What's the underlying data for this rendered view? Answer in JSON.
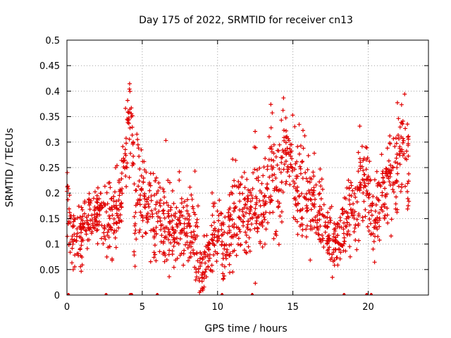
{
  "chart_data": {
    "type": "scatter",
    "title": "Day 175 of 2022, SRMTID for receiver cn13",
    "xlabel": "GPS time / hours",
    "ylabel": "SRMTID / TECUs",
    "xlim": [
      0,
      24
    ],
    "ylim": [
      0,
      0.5
    ],
    "x_ticks": [
      0,
      5,
      10,
      15,
      20
    ],
    "x_tick_labels": [
      "0",
      "5",
      "10",
      "15",
      "20"
    ],
    "y_ticks": [
      0,
      0.05,
      0.1,
      0.15,
      0.2,
      0.25,
      0.3,
      0.35,
      0.4,
      0.45,
      0.5
    ],
    "y_tick_labels": [
      "0",
      "0.05",
      "0.1",
      "0.15",
      "0.2",
      "0.25",
      "0.3",
      "0.35",
      "0.4",
      "0.45",
      "0.5"
    ],
    "grid": true,
    "marker": "+",
    "series_color": "#e00000",
    "density": 20,
    "trend": [
      [
        0.0,
        0.19,
        0.04
      ],
      [
        0.3,
        0.1,
        0.03
      ],
      [
        1.0,
        0.12,
        0.03
      ],
      [
        1.5,
        0.15,
        0.03
      ],
      [
        2.0,
        0.16,
        0.03
      ],
      [
        2.5,
        0.15,
        0.03
      ],
      [
        3.0,
        0.14,
        0.04
      ],
      [
        3.5,
        0.16,
        0.04
      ],
      [
        3.9,
        0.25,
        0.05
      ],
      [
        4.1,
        0.34,
        0.05
      ],
      [
        4.3,
        0.4,
        0.05
      ],
      [
        4.5,
        0.12,
        0.04
      ],
      [
        4.7,
        0.26,
        0.05
      ],
      [
        5.0,
        0.2,
        0.04
      ],
      [
        5.5,
        0.18,
        0.04
      ],
      [
        6.0,
        0.16,
        0.04
      ],
      [
        6.5,
        0.15,
        0.05
      ],
      [
        7.0,
        0.12,
        0.04
      ],
      [
        7.5,
        0.13,
        0.04
      ],
      [
        8.0,
        0.14,
        0.05
      ],
      [
        8.5,
        0.11,
        0.04
      ],
      [
        8.8,
        0.06,
        0.03
      ],
      [
        9.0,
        0.04,
        0.02
      ],
      [
        9.3,
        0.07,
        0.03
      ],
      [
        9.7,
        0.12,
        0.04
      ],
      [
        10.0,
        0.13,
        0.04
      ],
      [
        10.5,
        0.09,
        0.03
      ],
      [
        11.0,
        0.16,
        0.05
      ],
      [
        11.5,
        0.17,
        0.04
      ],
      [
        12.0,
        0.14,
        0.04
      ],
      [
        12.5,
        0.19,
        0.05
      ],
      [
        13.0,
        0.15,
        0.04
      ],
      [
        13.5,
        0.25,
        0.06
      ],
      [
        14.0,
        0.2,
        0.06
      ],
      [
        14.5,
        0.3,
        0.05
      ],
      [
        15.0,
        0.24,
        0.05
      ],
      [
        15.5,
        0.2,
        0.06
      ],
      [
        16.0,
        0.19,
        0.05
      ],
      [
        16.5,
        0.17,
        0.04
      ],
      [
        17.0,
        0.15,
        0.04
      ],
      [
        17.5,
        0.12,
        0.03
      ],
      [
        18.0,
        0.09,
        0.03
      ],
      [
        18.5,
        0.14,
        0.03
      ],
      [
        19.0,
        0.17,
        0.04
      ],
      [
        19.5,
        0.21,
        0.05
      ],
      [
        19.9,
        0.2,
        0.04
      ],
      [
        20.4,
        0.15,
        0.04
      ],
      [
        20.8,
        0.18,
        0.04
      ],
      [
        21.2,
        0.22,
        0.04
      ],
      [
        21.6,
        0.24,
        0.05
      ],
      [
        22.0,
        0.27,
        0.05
      ],
      [
        22.3,
        0.3,
        0.05
      ],
      [
        22.7,
        0.25,
        0.06
      ]
    ],
    "zero_marks_x": [
      0.1,
      2.6,
      4.2,
      4.3,
      6.0,
      10.3,
      12.3,
      18.4,
      19.9,
      20.2
    ]
  }
}
